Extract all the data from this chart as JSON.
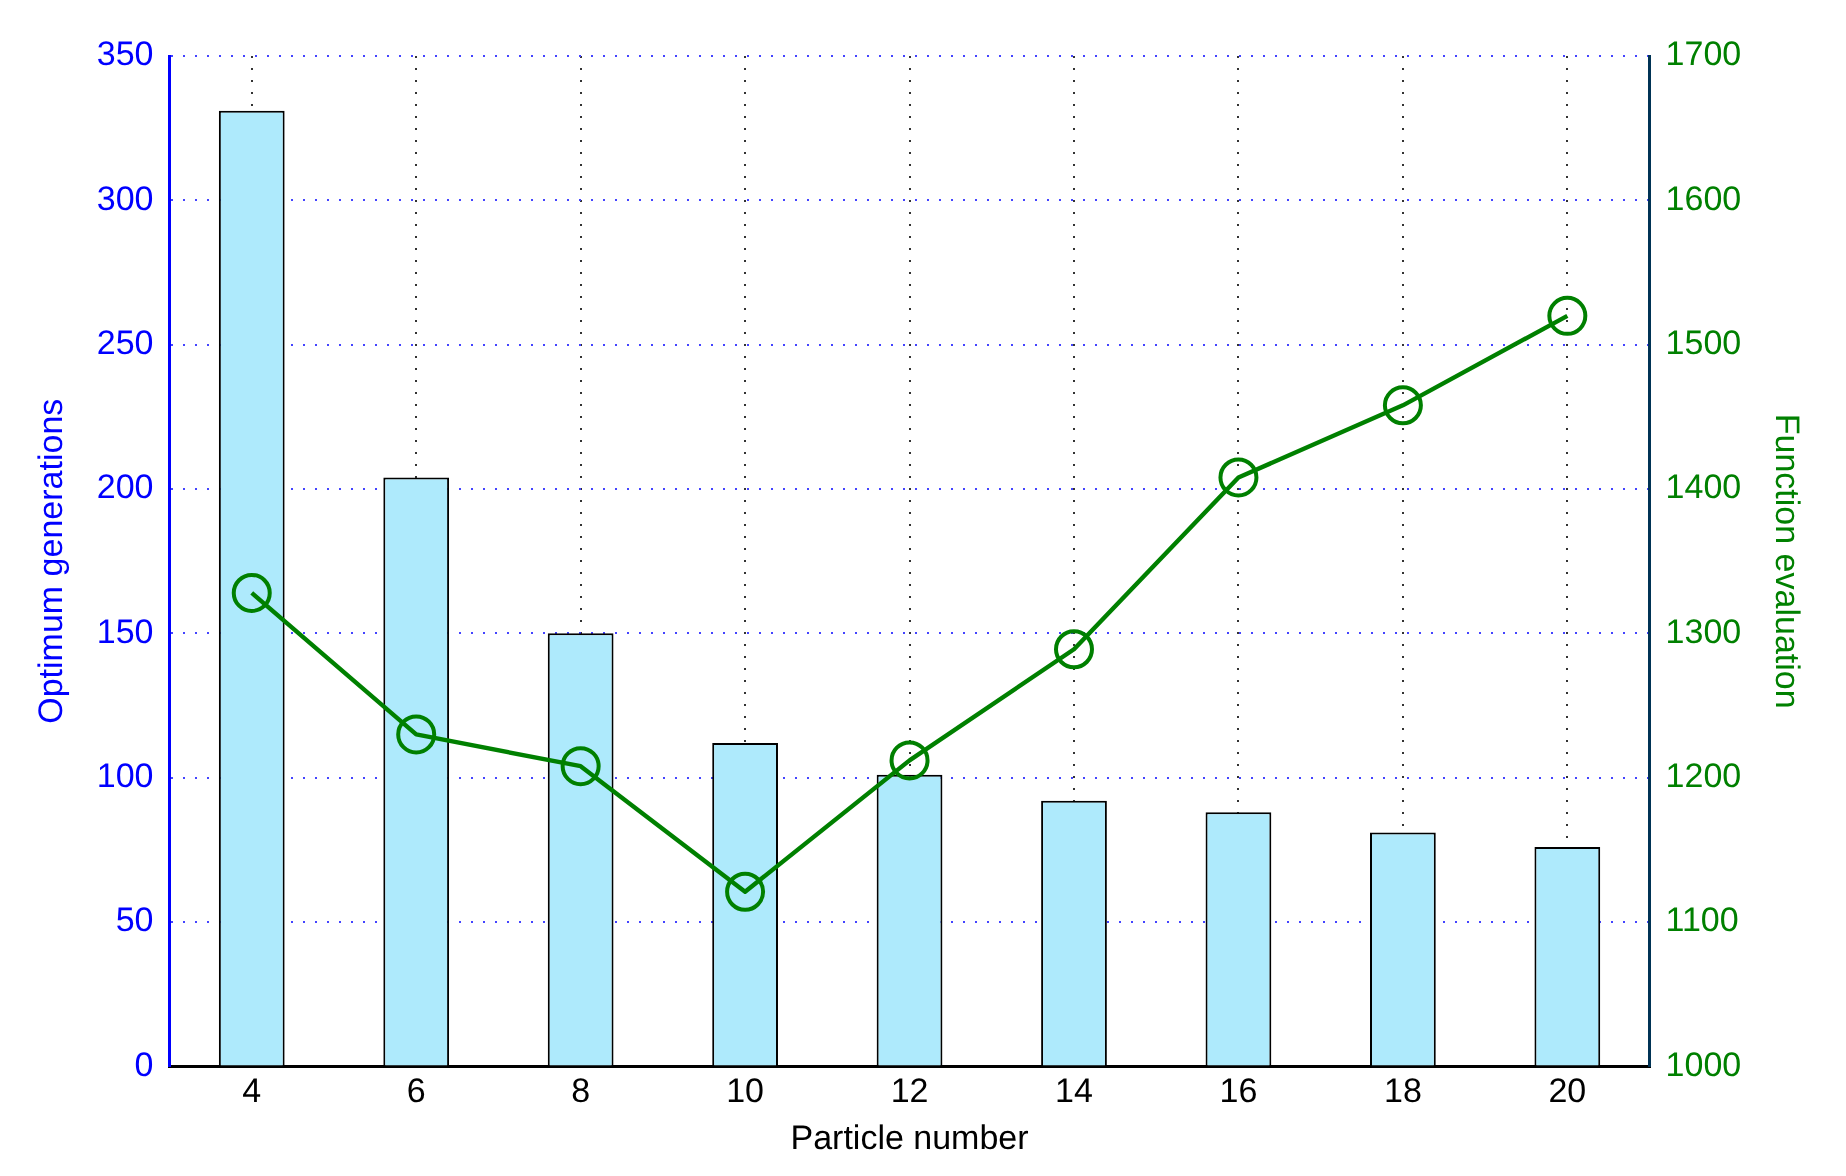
{
  "chart_data": {
    "type": "bar",
    "xlabel": "Particle number",
    "ylabel": "Optimum generations",
    "y2label": "Function evaluation",
    "categories": [
      "4",
      "6",
      "8",
      "10",
      "12",
      "14",
      "16",
      "18",
      "20"
    ],
    "series": [
      {
        "color": "#aeeafc",
        "values": [
          331,
          204,
          150,
          112,
          101,
          92,
          88,
          81,
          76
        ]
      },
      {
        "type": "line",
        "axis": "y2",
        "color": "#008000",
        "marker": "circle",
        "values": [
          1328,
          1230,
          1208,
          1121,
          1212,
          1289,
          1408,
          1458,
          1520
        ]
      }
    ],
    "ylim": [
      0,
      350
    ],
    "yticks": [
      0,
      50,
      100,
      150,
      200,
      250,
      300,
      350
    ],
    "y2lim": [
      1000,
      1700
    ],
    "y2ticks": [
      1000,
      1100,
      1200,
      1300,
      1400,
      1500,
      1600,
      1700
    ],
    "grid": true,
    "legend": false
  }
}
